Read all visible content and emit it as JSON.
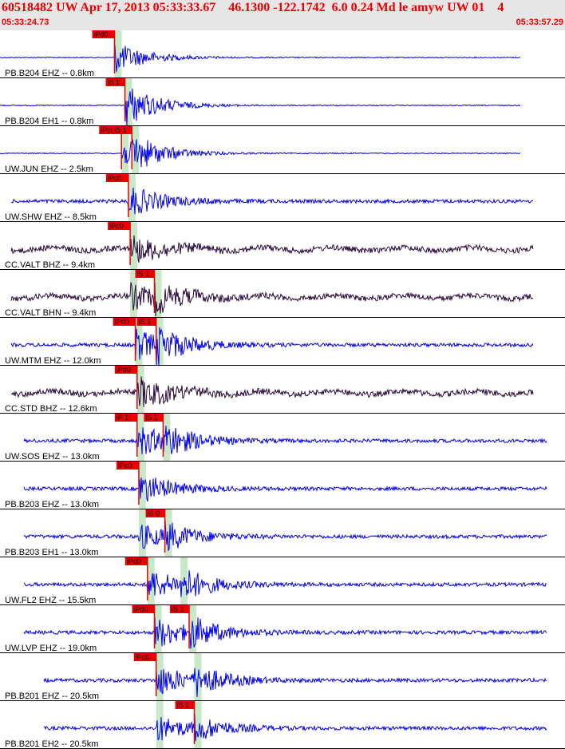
{
  "header": {
    "title": "60518482 UW Apr 17, 2013 05:33:33.67    46.1300 -122.1742  6.0 0.24 Md le amyw UW 01    4",
    "time_start": "05:33:24.73",
    "time_end": "05:33:57.29"
  },
  "colors": {
    "header_bg": "#e6e6e6",
    "title": "#ee0000",
    "trace_blue": "#0000ee",
    "trace_dark": "#2a0a3a",
    "pick_box": "#ee0000",
    "pick_line": "#ee0000",
    "window_green": "#c8e8c8"
  },
  "chart_data": {
    "type": "line",
    "title": "60518482 UW Apr 17, 2013 05:33:33.67    46.1300 -122.1742  6.0 0.24 Md le amyw UW 01    4",
    "x_range_label": [
      "05:33:24.73",
      "05:33:57.29"
    ],
    "traces": [
      {
        "label": "PB.B204 EHZ -- 0.8km",
        "color": "blue",
        "p_pick": "iPd0",
        "s_pick": "",
        "p_t": 6.6,
        "s_t": null,
        "amp": 1.0
      },
      {
        "label": "PB.B204 EH1 -- 0.8km",
        "color": "blue",
        "p_pick": "",
        "s_pick": "iS 1",
        "p_t": 7.2,
        "s_t": 7.2,
        "amp": 0.8
      },
      {
        "label": "UW.JUN EHZ -- 2.5km",
        "color": "blue",
        "p_pick": "iPc0",
        "s_pick": "iS 1",
        "p_t": 7.0,
        "s_t": 7.6,
        "amp": 0.9
      },
      {
        "label": "UW.SHW EHZ -- 8.5km",
        "color": "blue",
        "p_pick": "iPc0",
        "s_pick": "",
        "p_t": 7.4,
        "s_t": null,
        "amp": 1.0
      },
      {
        "label": "CC.VALT BHZ -- 9.4km",
        "color": "dark",
        "p_pick": "iPc0",
        "s_pick": "",
        "p_t": 7.5,
        "s_t": null,
        "amp": 0.9
      },
      {
        "label": "CC.VALT BHN -- 9.4km",
        "color": "dark",
        "p_pick": "",
        "s_pick": "iS 1",
        "p_t": 7.5,
        "s_t": 8.9,
        "amp": 0.8
      },
      {
        "label": "UW.MTM EHZ -- 12.0km",
        "color": "blue",
        "p_pick": "iPd0",
        "s_pick": "iS 1",
        "p_t": 7.8,
        "s_t": 9.0,
        "amp": 1.0
      },
      {
        "label": "CC.STD BHZ -- 12.6km",
        "color": "dark",
        "p_pick": "iPd0",
        "s_pick": "",
        "p_t": 7.9,
        "s_t": null,
        "amp": 1.0
      },
      {
        "label": "UW.SOS EHZ -- 13.0km",
        "color": "blue",
        "p_pick": "iP 1",
        "s_pick": "iS 1",
        "p_t": 7.9,
        "s_t": 9.4,
        "amp": 1.0
      },
      {
        "label": "PB.B203 EHZ -- 13.0km",
        "color": "blue",
        "p_pick": "iPc0",
        "s_pick": "",
        "p_t": 8.0,
        "s_t": null,
        "amp": 1.0
      },
      {
        "label": "PB.B203 EH1 -- 13.0km",
        "color": "blue",
        "p_pick": "",
        "s_pick": "iS 0",
        "p_t": 8.0,
        "s_t": 9.5,
        "amp": 0.8
      },
      {
        "label": "UW.FL2 EHZ -- 15.5km",
        "color": "blue",
        "p_pick": "iPd0",
        "s_pick": "",
        "p_t": 8.5,
        "s_t": 10.4,
        "amp": 1.0
      },
      {
        "label": "UW.LVP EHZ -- 19.0km",
        "color": "blue",
        "p_pick": "iPd0",
        "s_pick": "iS 1",
        "p_t": 8.9,
        "s_t": 10.9,
        "amp": 1.0
      },
      {
        "label": "PB.B201 EHZ -- 20.5km",
        "color": "blue",
        "p_pick": "iPc0",
        "s_pick": "",
        "p_t": 9.0,
        "s_t": 11.2,
        "amp": 1.0
      },
      {
        "label": "PB.B201 EH2 -- 20.5km",
        "color": "blue",
        "p_pick": "",
        "s_pick": "iS 1",
        "p_t": 9.0,
        "s_t": 11.2,
        "amp": 0.8
      }
    ]
  }
}
